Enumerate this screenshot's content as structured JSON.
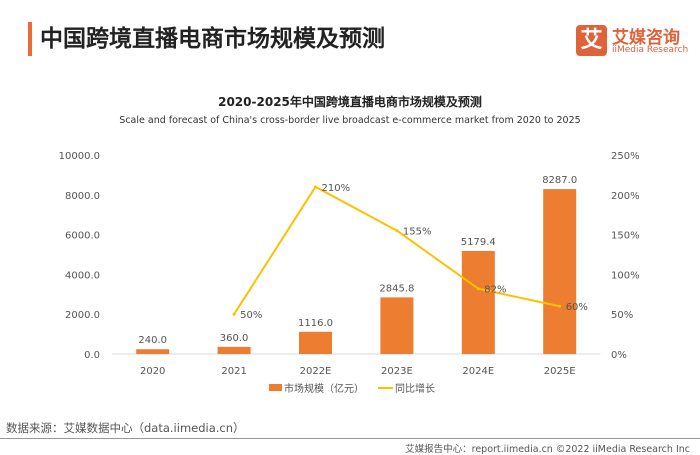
{
  "header": {
    "title": "中国跨境直播电商市场规模及预测",
    "logo_cn": "艾媒咨询",
    "logo_en": "iiMedia Research",
    "logo_mark": "艾"
  },
  "chart_data": {
    "type": "bar+line",
    "title": "2020-2025年中国跨境直播电商市场规模及预测",
    "subtitle": "Scale and forecast of China's cross-border live broadcast e-commerce market from 2020 to 2025",
    "categories": [
      "2020",
      "2021",
      "2022E",
      "2023E",
      "2024E",
      "2025E"
    ],
    "series": [
      {
        "name": "市场规模（亿元）",
        "type": "bar",
        "axis": "left",
        "color": "#ed7d31",
        "values": [
          240.0,
          360.0,
          1116.0,
          2845.8,
          5179.4,
          8287.0
        ],
        "labels": [
          "240.0",
          "360.0",
          "1116.0",
          "2845.8",
          "5179.4",
          "8287.0"
        ]
      },
      {
        "name": "同比增长",
        "type": "line",
        "axis": "right",
        "color": "#ffc000",
        "values": [
          null,
          50,
          210,
          155,
          82,
          60
        ],
        "labels": [
          "",
          "50%",
          "210%",
          "155%",
          "82%",
          "60%"
        ]
      }
    ],
    "y_left": {
      "min": 0,
      "max": 10000,
      "ticks": [
        "0.0",
        "2000.0",
        "4000.0",
        "6000.0",
        "8000.0",
        "10000.0"
      ]
    },
    "y_right": {
      "min": 0,
      "max": 250,
      "ticks": [
        "0%",
        "50%",
        "100%",
        "150%",
        "200%",
        "250%"
      ]
    },
    "grid": false,
    "legend": "bottom"
  },
  "footer": {
    "source": "数据来源：艾媒数据中心（data.iimedia.cn）",
    "credit": "艾媒报告中心：report.iimedia.cn   ©2022  iiMedia Research  Inc"
  }
}
